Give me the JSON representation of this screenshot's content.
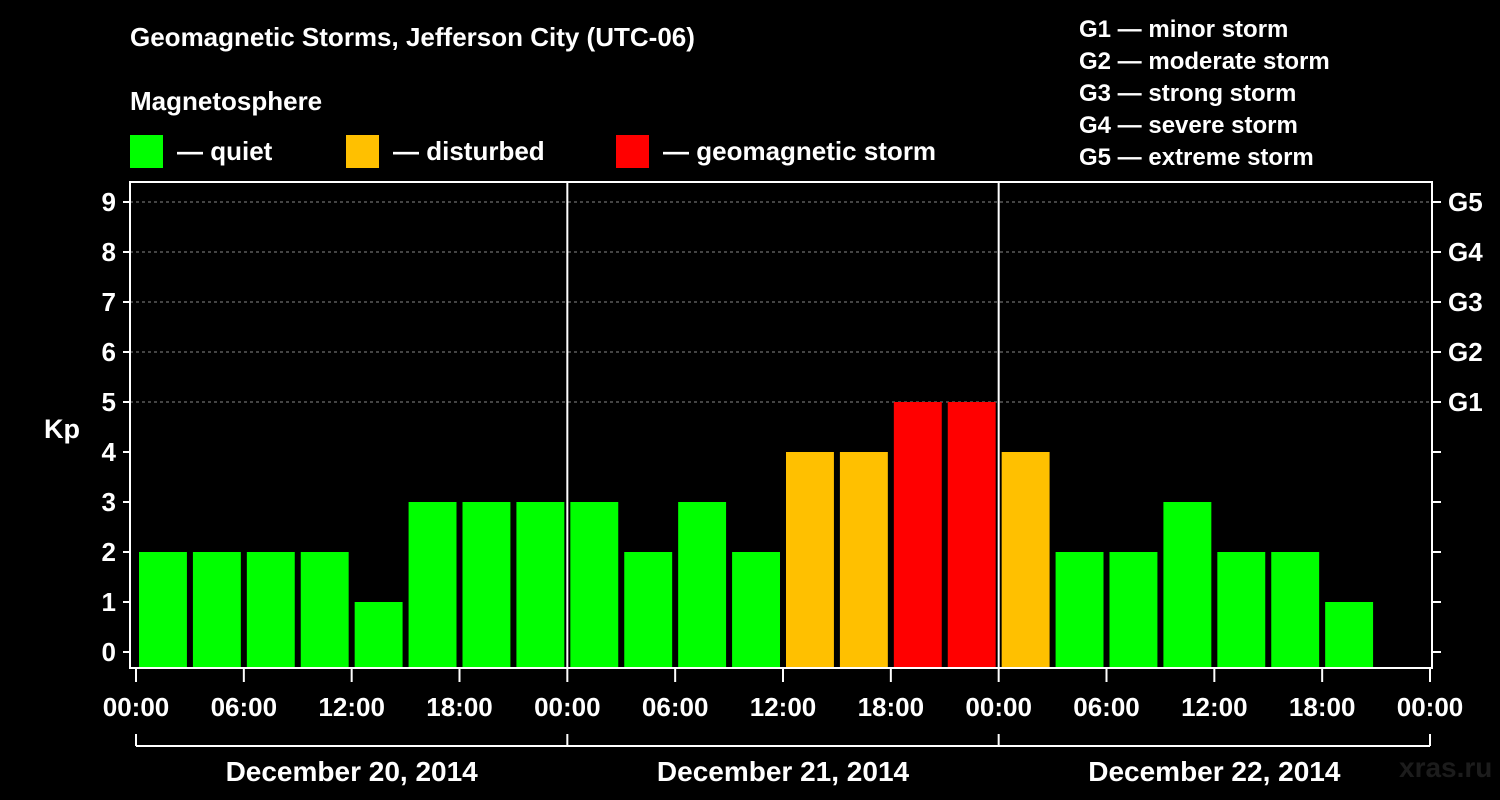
{
  "chart_data": {
    "type": "bar",
    "title": "Geomagnetic Storms, Jefferson City (UTC-06)",
    "subtitle": "Magnetosphere",
    "ylabel": "Kp",
    "ylim": [
      0,
      9
    ],
    "yticks": [
      "0",
      "1",
      "2",
      "3",
      "4",
      "5",
      "6",
      "7",
      "8",
      "9"
    ],
    "right_axis": [
      {
        "kp": 5,
        "label": "G1"
      },
      {
        "kp": 6,
        "label": "G2"
      },
      {
        "kp": 7,
        "label": "G3"
      },
      {
        "kp": 8,
        "label": "G4"
      },
      {
        "kp": 9,
        "label": "G5"
      }
    ],
    "xticks": [
      "00:00",
      "06:00",
      "12:00",
      "18:00",
      "00:00",
      "06:00",
      "12:00",
      "18:00",
      "00:00",
      "06:00",
      "12:00",
      "18:00",
      "00:00"
    ],
    "days": [
      "December 20, 2014",
      "December 21, 2014",
      "December 22, 2014"
    ],
    "interval_hours": 3,
    "values": [
      2,
      2,
      2,
      2,
      1,
      3,
      3,
      3,
      3,
      2,
      3,
      2,
      4,
      4,
      5,
      5,
      4,
      2,
      2,
      3,
      2,
      2,
      1
    ],
    "legend": [
      {
        "label": "— quiet",
        "color": "#00ff00"
      },
      {
        "label": "— disturbed",
        "color": "#ffc000"
      },
      {
        "label": "— geomagnetic storm",
        "color": "#ff0000"
      }
    ],
    "storm_scale": [
      "G1 — minor storm",
      "G2 — moderate storm",
      "G3 — strong storm",
      "G4 — severe storm",
      "G5 — extreme storm"
    ],
    "colors": {
      "quiet": "#00ff00",
      "disturbed": "#ffc000",
      "storm": "#ff0000",
      "grid": "#888888",
      "axis": "#ffffff"
    },
    "grid": true
  },
  "watermark": "xras.ru"
}
